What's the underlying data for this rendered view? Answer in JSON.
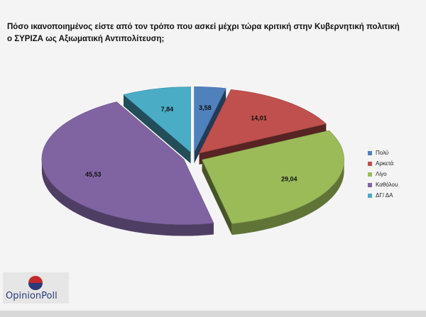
{
  "header": {
    "title": "Πόσο ικανοποιημένος είστε από τον τρόπο που ασκεί μέχρι τώρα κριτική στην Κυβερνητική πολιτική ο ΣΥΡΙΖΑ ως Αξιωματική Αντιπολίτευση;"
  },
  "chart_data": {
    "type": "pie",
    "title": "Πόσο ικανοποιημένος είστε από τον τρόπο που ασκεί μέχρι τώρα κριτική στην Κυβερνητική πολιτική ο ΣΥΡΙΖΑ ως Αξιωματική Αντιπολίτευση;",
    "categories": [
      "Πολύ",
      "Αρκετά",
      "Λίγο",
      "Καθόλου",
      "ΔΓ/ ΔΑ"
    ],
    "values": [
      3.58,
      14.01,
      29.04,
      45.53,
      7.84
    ],
    "value_labels": [
      "3,58",
      "14,01",
      "29,04",
      "45,53",
      "7,84"
    ],
    "colors": [
      "#4f81bd",
      "#c0504d",
      "#9bbb59",
      "#8064a2",
      "#4bacc6"
    ],
    "style": "3d-exploded",
    "legend_position": "right"
  },
  "logo": {
    "text": "OpinionPoll"
  }
}
